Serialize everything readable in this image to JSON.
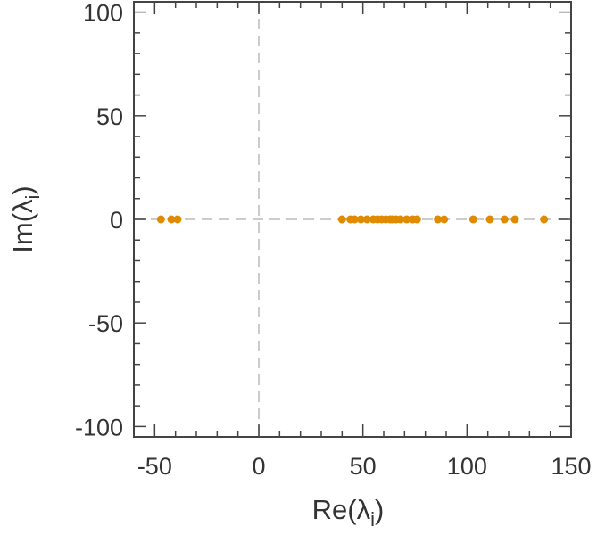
{
  "chart_data": {
    "type": "scatter",
    "title": "",
    "xlabel": "Re(λ",
    "xlabel_sub": "i",
    "xlabel_close": ")",
    "ylabel": "Im(λ",
    "ylabel_sub": "i",
    "ylabel_close": ")",
    "xlim": [
      -60,
      150
    ],
    "ylim": [
      -105,
      105
    ],
    "x_ticks": [
      -50,
      0,
      50,
      100,
      150
    ],
    "x_tick_labels": [
      "-50",
      "0",
      "50",
      "100",
      "150"
    ],
    "y_ticks": [
      100,
      50,
      0,
      -50,
      -100
    ],
    "y_tick_labels": [
      "100",
      "50",
      "0",
      "-50",
      "-100"
    ],
    "x_minor_step": 10,
    "y_minor_step": 10,
    "grid": false,
    "reference_lines": "dashed lines at x = 0 and y = 0",
    "marker_color": "#e08a00",
    "zero_line_color": "#cccccc",
    "series": [
      {
        "x": [
          -47,
          -42,
          -39,
          40,
          44,
          46,
          49,
          52,
          55,
          57,
          59,
          61,
          63,
          64,
          66,
          68,
          71,
          74,
          76,
          86,
          89,
          103,
          111,
          118,
          123,
          137
        ],
        "y": [
          0,
          0,
          0,
          0,
          0,
          0,
          0,
          0,
          0,
          0,
          0,
          0,
          0,
          0,
          0,
          0,
          0,
          0,
          0,
          0,
          0,
          0,
          0,
          0,
          0,
          0
        ]
      }
    ]
  }
}
